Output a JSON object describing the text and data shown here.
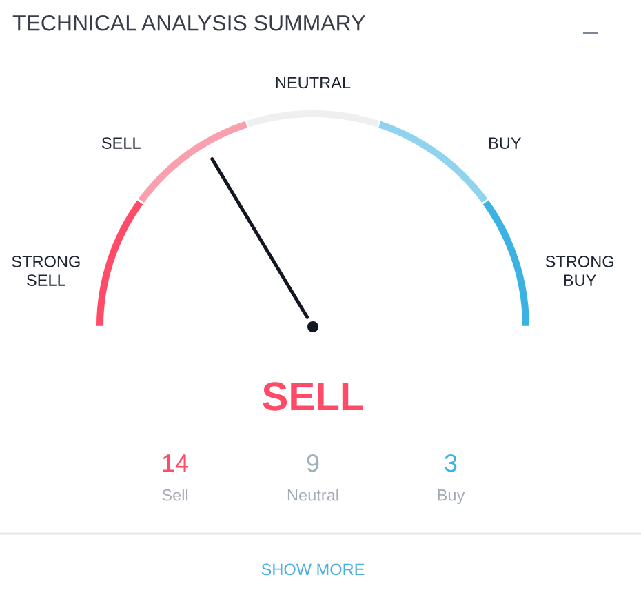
{
  "chart_data": [
    {
      "type": "donut",
      "title": "TECHNICAL ANALYSIS SUMMARY",
      "categories": [
        "STRONG SELL",
        "SELL",
        "NEUTRAL",
        "BUY",
        "STRONG BUY"
      ],
      "values": [
        20,
        20,
        20,
        20,
        20
      ],
      "colors": [
        "#ff4a68",
        "#f9a0ae",
        "#eeeff1",
        "#90d3ef",
        "#3bb2e2"
      ],
      "needle": "SELL",
      "annotations": [
        "SELL"
      ]
    },
    {
      "type": "other",
      "categories": [
        "Sell",
        "Neutral",
        "Buy"
      ],
      "values": [
        14,
        9,
        3
      ],
      "colors": [
        "#ff4a68",
        "#9db1bd",
        "#3bb3e4"
      ],
      "data_labels": true,
      "annotations": [
        "SHOW MORE"
      ]
    }
  ]
}
